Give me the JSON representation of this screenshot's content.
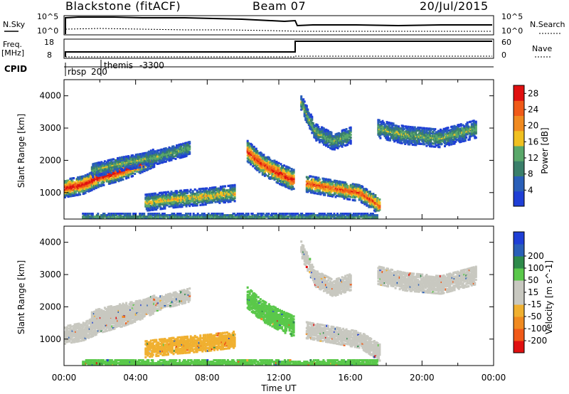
{
  "header": {
    "station": "Blackstone (fitACF)",
    "beam": "Beam 07",
    "date": "20/Jul/2015"
  },
  "top_panels": {
    "nsky_label": "N.Sky",
    "nsky_ticks": [
      "10^5",
      "10^0"
    ],
    "nsearch_label": "N.Search",
    "nsearch_ticks": [
      "10^5",
      "10^0"
    ],
    "freq_label": "Freq.",
    "freq_unit": "[MHz]",
    "freq_ticks": [
      "18",
      "8"
    ],
    "nave_label": "Nave",
    "nave_ticks": [
      "60",
      "0"
    ],
    "cpid_label": "CPID",
    "cpid_entries": [
      {
        "name": "rbsp",
        "value": "200",
        "start_hour": 0.0
      },
      {
        "name": "themis",
        "value": "-3300",
        "start_hour": 2.0
      }
    ]
  },
  "colors": {
    "power_scale": [
      "#1f3fd6",
      "#2a5fb8",
      "#3a7f6a",
      "#5aa86a",
      "#f0c020",
      "#f08a20",
      "#f05a18",
      "#e01010"
    ],
    "velocity_scale": [
      "#e01010",
      "#f05a18",
      "#f08a20",
      "#f0b030",
      "#c8c8c0",
      "#c8c8c0",
      "#5ac84a",
      "#2e8a4a",
      "#2a5fb8",
      "#1f3fd6"
    ]
  },
  "chart_data": [
    {
      "type": "heatmap",
      "title": "",
      "xlabel": "Time UT",
      "ylabel": "Slant Range [km]",
      "colorbar_label": "Power [dB]",
      "colorbar_ticks": [
        "4",
        "8",
        "12",
        "16",
        "20",
        "24",
        "28"
      ],
      "colorbar_range": [
        0,
        30
      ],
      "xlim": [
        0,
        24
      ],
      "ylim": [
        180,
        4500
      ],
      "yticks": [
        "1000",
        "2000",
        "3000",
        "4000"
      ],
      "xticks": [
        "00:00",
        "04:00",
        "08:00",
        "12:00",
        "16:00",
        "20:00",
        "00:00"
      ],
      "features": [
        {
          "t": [
            0.0,
            1.0,
            2.0,
            3.0,
            4.0,
            5.0
          ],
          "r": [
            1150,
            1250,
            1500,
            1650,
            1850,
            2100
          ],
          "width": 280,
          "peak": 30
        },
        {
          "t": [
            4.5,
            6.0,
            8.0,
            9.5
          ],
          "r": [
            700,
            800,
            900,
            1000
          ],
          "width": 250,
          "peak": 18
        },
        {
          "t": [
            1.5,
            3.0,
            5.0,
            7.0
          ],
          "r": [
            1700,
            1900,
            2100,
            2400
          ],
          "width": 220,
          "peak": 14
        },
        {
          "t": [
            10.2,
            11.0,
            12.0,
            12.8
          ],
          "r": [
            2300,
            1900,
            1600,
            1400
          ],
          "width": 320,
          "peak": 28
        },
        {
          "t": [
            13.5,
            15.0,
            16.5,
            17.6
          ],
          "r": [
            1300,
            1150,
            1000,
            600
          ],
          "width": 260,
          "peak": 26
        },
        {
          "t": [
            13.2,
            14.0,
            15.0,
            16.0
          ],
          "r": [
            3800,
            2900,
            2600,
            2800
          ],
          "width": 260,
          "peak": 14
        },
        {
          "t": [
            17.5,
            19.0,
            21.0,
            23.0
          ],
          "r": [
            3000,
            2800,
            2700,
            3000
          ],
          "width": 280,
          "peak": 14
        },
        {
          "t": [
            1.0,
            5.0,
            10.0,
            17.5
          ],
          "r": [
            250,
            250,
            250,
            250
          ],
          "width": 120,
          "peak": 12
        }
      ]
    },
    {
      "type": "heatmap",
      "title": "",
      "xlabel": "Time UT",
      "ylabel": "Slant Range [km]",
      "colorbar_label": "Velocity [m s^-1]",
      "colorbar_ticks": [
        "-200",
        "-100",
        "-50",
        "-15",
        "15",
        "50",
        "100",
        "200"
      ],
      "colorbar_range": [
        -250,
        250
      ],
      "xlim": [
        0,
        24
      ],
      "ylim": [
        180,
        4500
      ],
      "yticks": [
        "1000",
        "2000",
        "3000",
        "4000"
      ],
      "xticks": [
        "00:00",
        "04:00",
        "08:00",
        "12:00",
        "16:00",
        "20:00",
        "00:00"
      ],
      "features": [
        {
          "t": [
            0.0,
            1.0,
            2.0,
            3.0,
            4.0,
            5.0
          ],
          "r": [
            1150,
            1250,
            1500,
            1650,
            1850,
            2100
          ],
          "width": 280,
          "vel": -5
        },
        {
          "t": [
            4.5,
            6.0,
            8.0,
            9.5
          ],
          "r": [
            700,
            800,
            900,
            1000
          ],
          "width": 250,
          "vel": -40
        },
        {
          "t": [
            1.5,
            3.0,
            5.0,
            7.0
          ],
          "r": [
            1700,
            1900,
            2100,
            2400
          ],
          "width": 220,
          "vel": -5
        },
        {
          "t": [
            10.2,
            11.0,
            12.0,
            12.8
          ],
          "r": [
            2300,
            1900,
            1600,
            1400
          ],
          "width": 320,
          "vel": 30
        },
        {
          "t": [
            13.5,
            15.0,
            16.5,
            17.6
          ],
          "r": [
            1300,
            1150,
            1000,
            600
          ],
          "width": 260,
          "vel": -5
        },
        {
          "t": [
            13.2,
            14.0,
            15.0,
            16.0
          ],
          "r": [
            3800,
            2900,
            2600,
            2800
          ],
          "width": 260,
          "vel": -5
        },
        {
          "t": [
            17.5,
            19.0,
            21.0,
            23.0
          ],
          "r": [
            3000,
            2800,
            2700,
            3000
          ],
          "width": 280,
          "vel": -5
        },
        {
          "t": [
            1.0,
            5.0,
            10.0,
            17.5
          ],
          "r": [
            250,
            250,
            250,
            250
          ],
          "width": 120,
          "vel": 40
        }
      ]
    }
  ]
}
